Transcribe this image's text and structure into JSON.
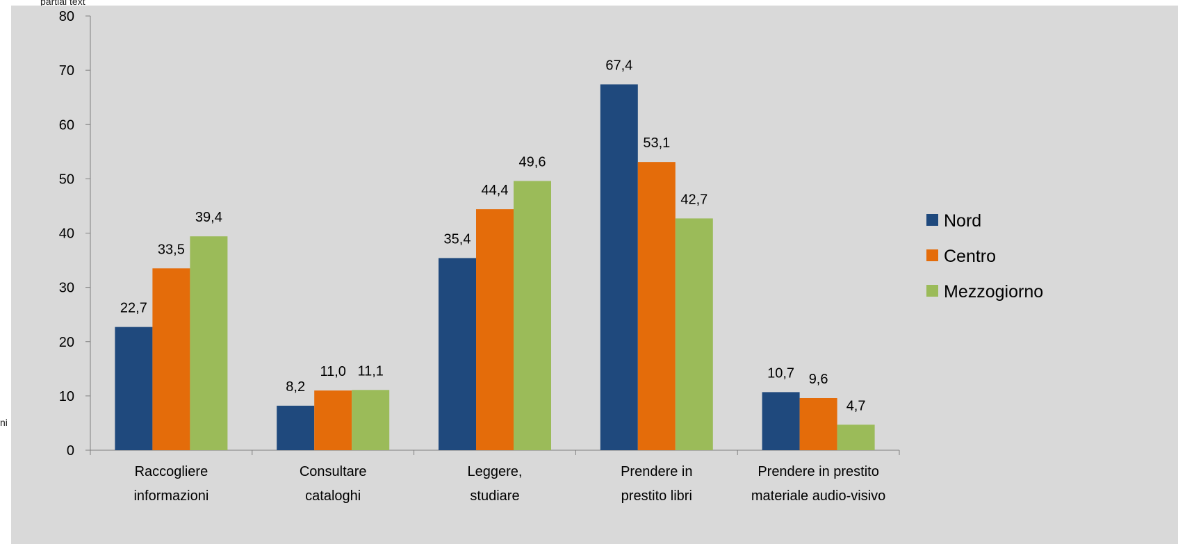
{
  "cropped_text": {
    "top": "partial text",
    "left": "ni"
  },
  "colors": {
    "background": "#d9d9d9",
    "nord": "#1f497d",
    "centro": "#e46c0a",
    "mezzogiorno": "#9bbb59",
    "axis": "#7f7f7f",
    "text": "#000000"
  },
  "chart_data": {
    "type": "bar",
    "title": "",
    "xlabel": "",
    "ylabel": "",
    "ylim": [
      0,
      80
    ],
    "y_ticks": [
      "0",
      "10",
      "20",
      "30",
      "40",
      "50",
      "60",
      "70",
      "80"
    ],
    "grid": false,
    "legend_position": "right",
    "categories": [
      [
        "Raccogliere",
        "informazioni"
      ],
      [
        "Consultare",
        "cataloghi"
      ],
      [
        "Leggere,",
        "studiare"
      ],
      [
        "Prendere in",
        "prestito libri"
      ],
      [
        "Prendere in prestito",
        "materiale audio-visivo"
      ]
    ],
    "series": [
      {
        "name": "Nord",
        "color": "#1f497d",
        "values": [
          22.7,
          8.2,
          35.4,
          67.4,
          10.7
        ],
        "labels": [
          "22,7",
          "8,2",
          "35,4",
          "67,4",
          "10,7"
        ]
      },
      {
        "name": "Centro",
        "color": "#e46c0a",
        "values": [
          33.5,
          11.0,
          44.4,
          53.1,
          9.6
        ],
        "labels": [
          "33,5",
          "11,0",
          "44,4",
          "53,1",
          "9,6"
        ]
      },
      {
        "name": "Mezzogiorno",
        "color": "#9bbb59",
        "values": [
          39.4,
          11.1,
          49.6,
          42.7,
          4.7
        ],
        "labels": [
          "39,4",
          "11,1",
          "49,6",
          "42,7",
          "4,7"
        ]
      }
    ]
  }
}
